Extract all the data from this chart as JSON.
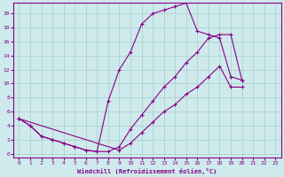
{
  "xlabel": "Windchill (Refroidissement éolien,°C)",
  "xlim": [
    -0.5,
    23.5
  ],
  "ylim": [
    -0.5,
    21.5
  ],
  "xticks": [
    0,
    1,
    2,
    3,
    4,
    5,
    6,
    7,
    8,
    9,
    10,
    11,
    12,
    13,
    14,
    15,
    16,
    17,
    18,
    19,
    20,
    21,
    22,
    23
  ],
  "yticks": [
    0,
    2,
    4,
    6,
    8,
    10,
    12,
    14,
    16,
    18,
    20
  ],
  "bg_color": "#ceeaec",
  "line_color": "#880088",
  "grid_color": "#aacccc",
  "line1_x": [
    0,
    1,
    2,
    3,
    4,
    5,
    6,
    7,
    8,
    9,
    10,
    11,
    12,
    13,
    14,
    15,
    16,
    17,
    18,
    19,
    20
  ],
  "line1_y": [
    5.0,
    4.0,
    2.5,
    2.0,
    1.5,
    1.0,
    0.5,
    0.3,
    7.5,
    12.0,
    14.5,
    18.5,
    20.0,
    20.5,
    21.0,
    21.5,
    17.5,
    17.0,
    16.5,
    11.0,
    10.5
  ],
  "line2_x": [
    0,
    1,
    2,
    3,
    4,
    5,
    6,
    7,
    8,
    9,
    10,
    11,
    12,
    13,
    14,
    15,
    16,
    17,
    18,
    19,
    20
  ],
  "line2_y": [
    5.0,
    4.0,
    2.5,
    2.0,
    1.5,
    1.0,
    0.5,
    0.3,
    0.3,
    1.0,
    3.5,
    5.5,
    7.5,
    9.5,
    11.0,
    13.0,
    14.5,
    16.5,
    17.0,
    17.0,
    10.5
  ],
  "line3_x": [
    0,
    9,
    10,
    11,
    12,
    13,
    14,
    15,
    16,
    17,
    18,
    19,
    20
  ],
  "line3_y": [
    5.0,
    0.5,
    1.5,
    3.0,
    4.5,
    6.0,
    7.0,
    8.5,
    9.5,
    11.0,
    12.5,
    9.5,
    9.5
  ]
}
